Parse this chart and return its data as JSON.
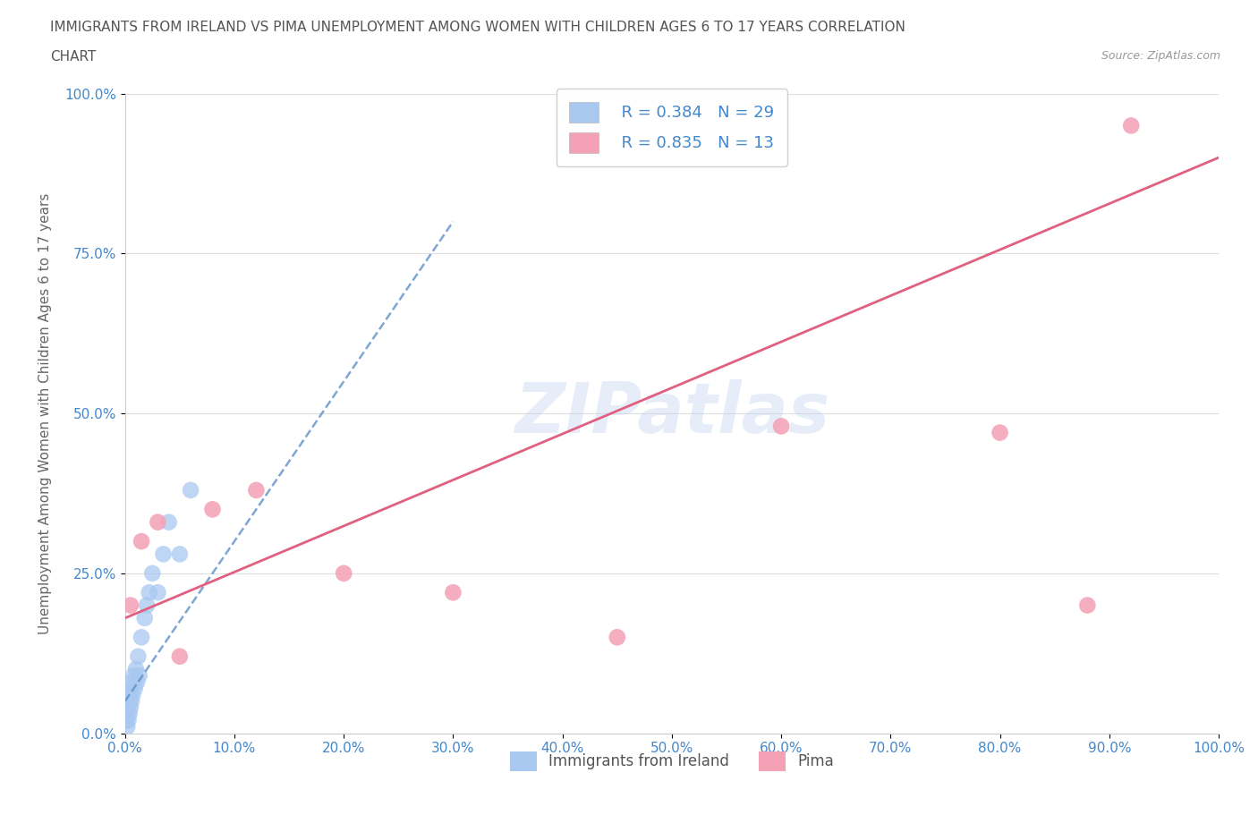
{
  "title_line1": "IMMIGRANTS FROM IRELAND VS PIMA UNEMPLOYMENT AMONG WOMEN WITH CHILDREN AGES 6 TO 17 YEARS CORRELATION",
  "title_line2": "CHART",
  "source_text": "Source: ZipAtlas.com",
  "ylabel": "Unemployment Among Women with Children Ages 6 to 17 years",
  "watermark": "ZIPatlas",
  "xlim": [
    0,
    100
  ],
  "ylim": [
    0,
    100
  ],
  "xticks": [
    0,
    10,
    20,
    30,
    40,
    50,
    60,
    70,
    80,
    90,
    100
  ],
  "yticks": [
    0,
    25,
    50,
    75,
    100
  ],
  "xtick_labels": [
    "0.0%",
    "10.0%",
    "20.0%",
    "30.0%",
    "40.0%",
    "50.0%",
    "60.0%",
    "70.0%",
    "80.0%",
    "90.0%",
    "100.0%"
  ],
  "ytick_labels": [
    "0.0%",
    "25.0%",
    "50.0%",
    "75.0%",
    "100.0%"
  ],
  "legend_labels": [
    "Immigrants from Ireland",
    "Pima"
  ],
  "legend_R": [
    0.384,
    0.835
  ],
  "legend_N": [
    29,
    13
  ],
  "blue_color": "#A8C8F0",
  "pink_color": "#F4A0B5",
  "blue_line_color": "#6090C8",
  "pink_line_color": "#E06080",
  "axis_label_color": "#4488CC",
  "title_color": "#555555",
  "grid_color": "#DDDDDD",
  "background_color": "#FFFFFF",
  "ireland_x": [
    0.1,
    0.15,
    0.2,
    0.25,
    0.3,
    0.35,
    0.4,
    0.45,
    0.5,
    0.55,
    0.6,
    0.65,
    0.7,
    0.8,
    0.9,
    1.0,
    1.1,
    1.2,
    1.3,
    1.5,
    1.8,
    2.0,
    2.2,
    2.5,
    3.0,
    3.5,
    4.0,
    5.0,
    6.0
  ],
  "ireland_y": [
    2,
    3,
    1,
    4,
    2,
    5,
    3,
    6,
    4,
    7,
    5,
    8,
    6,
    9,
    7,
    10,
    8,
    12,
    9,
    15,
    18,
    20,
    22,
    25,
    22,
    28,
    33,
    28,
    38
  ],
  "pima_x": [
    0.5,
    1.5,
    3.0,
    5.0,
    8.0,
    12.0,
    20.0,
    30.0,
    45.0,
    60.0,
    80.0,
    88.0,
    92.0
  ],
  "pima_y": [
    20,
    30,
    33,
    12,
    35,
    38,
    25,
    22,
    15,
    48,
    47,
    20,
    95
  ],
  "blue_trend_x0": 0,
  "blue_trend_x1": 30,
  "blue_trend_y0": 5,
  "blue_trend_y1": 80,
  "pink_trend_x0": 0,
  "pink_trend_x1": 100,
  "pink_trend_y0": 18,
  "pink_trend_y1": 90
}
